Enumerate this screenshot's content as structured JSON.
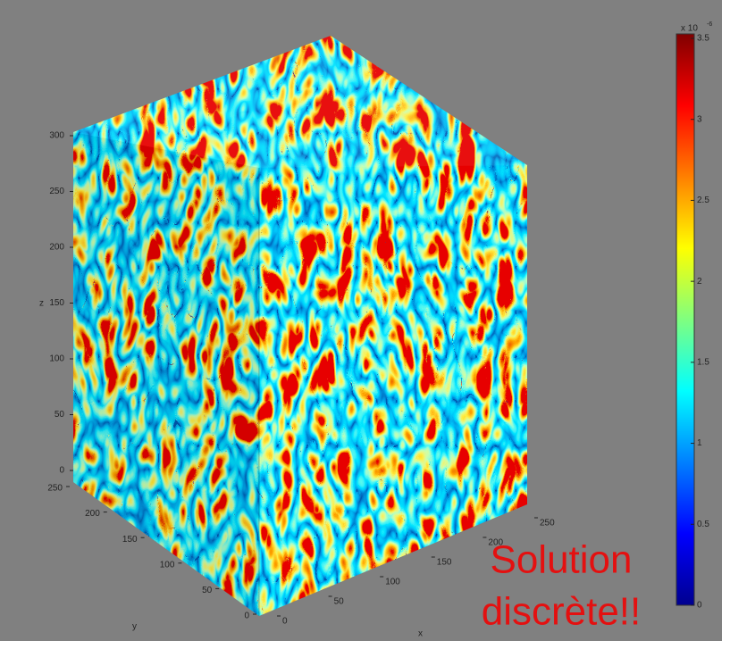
{
  "plot": {
    "z_axis": {
      "label": "z",
      "ticks": [
        0,
        50,
        100,
        150,
        200,
        250,
        300
      ]
    },
    "y_axis": {
      "label": "y",
      "ticks": [
        0,
        50,
        100,
        150,
        200,
        250
      ]
    },
    "x_axis": {
      "label": "x",
      "ticks": [
        0,
        50,
        100,
        150,
        200,
        250
      ]
    },
    "colorbar": {
      "exponent_label": "x 10",
      "exponent": "-6",
      "ticks": [
        0,
        0.5,
        1,
        1.5,
        2,
        2.5,
        3,
        3.5
      ]
    }
  },
  "annotation": {
    "lines": [
      "Solution",
      "discrète!!"
    ]
  }
}
